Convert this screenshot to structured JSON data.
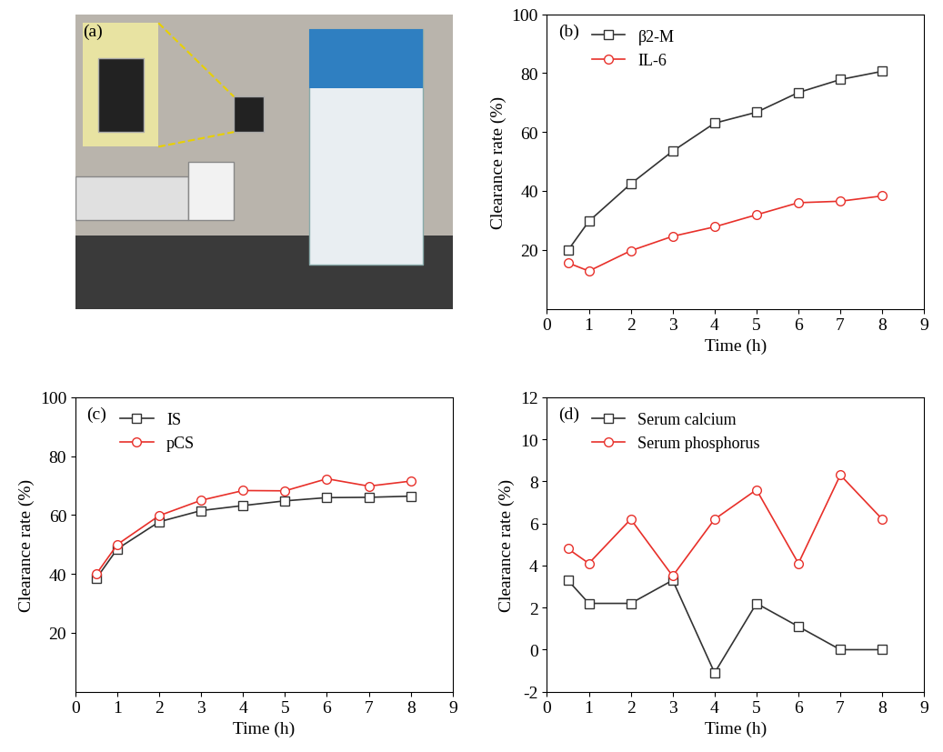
{
  "photo": {
    "label": "(a)"
  },
  "chart_data": [
    {
      "type": "line",
      "annotations": [
        "(b)"
      ],
      "x_label": "Time (h)",
      "y_label": "Clearance rate (%)",
      "x": [
        0.5,
        1,
        2,
        3,
        4,
        5,
        6,
        7,
        8
      ],
      "series": [
        {
          "name": "β2-M",
          "color": "#333333",
          "marker": "square",
          "values": [
            19.8,
            29.7,
            42.4,
            53.5,
            63.0,
            66.7,
            73.4,
            77.8,
            80.6
          ]
        },
        {
          "name": "IL-6",
          "color": "#e8302a",
          "marker": "circle",
          "values": [
            15.6,
            12.8,
            19.7,
            24.6,
            27.8,
            31.9,
            36.0,
            36.5,
            38.3
          ]
        }
      ],
      "xlim": [
        0,
        9
      ],
      "xticks": [
        0,
        1,
        2,
        3,
        4,
        5,
        6,
        7,
        8,
        9
      ],
      "ylim": [
        0,
        100
      ],
      "yticks": [
        20,
        40,
        60,
        80,
        100
      ],
      "legend": "upper left"
    },
    {
      "type": "line",
      "annotations": [
        "(c)"
      ],
      "x_label": "Time (h)",
      "y_label": "Clearance rate (%)",
      "x": [
        0.5,
        1,
        2,
        3,
        4,
        5,
        6,
        7,
        8
      ],
      "series": [
        {
          "name": "IS",
          "color": "#333333",
          "marker": "square",
          "values": [
            38.5,
            48.5,
            57.7,
            61.5,
            63.2,
            64.8,
            65.9,
            66.0,
            66.4
          ]
        },
        {
          "name": "pCS",
          "color": "#e8302a",
          "marker": "circle",
          "values": [
            40.0,
            50.0,
            59.8,
            65.0,
            68.3,
            68.2,
            72.3,
            69.8,
            71.5
          ]
        }
      ],
      "xlim": [
        0,
        9
      ],
      "xticks": [
        0,
        1,
        2,
        3,
        4,
        5,
        6,
        7,
        8,
        9
      ],
      "ylim": [
        0,
        100
      ],
      "yticks": [
        20,
        40,
        60,
        80,
        100
      ],
      "legend": "upper left"
    },
    {
      "type": "line",
      "annotations": [
        "(d)"
      ],
      "x_label": "Time (h)",
      "y_label": "Clearance rate (%)",
      "x": [
        0.5,
        1,
        2,
        3,
        4,
        5,
        6,
        7,
        8
      ],
      "series": [
        {
          "name": "Serum calcium",
          "color": "#333333",
          "marker": "square",
          "values": [
            3.3,
            2.2,
            2.2,
            3.3,
            -1.1,
            2.2,
            1.1,
            0,
            0
          ]
        },
        {
          "name": "Serum phosphorus",
          "color": "#e8302a",
          "marker": "circle",
          "values": [
            4.8,
            4.1,
            6.2,
            3.5,
            6.2,
            7.6,
            4.1,
            8.3,
            6.2
          ]
        }
      ],
      "xlim": [
        0,
        9
      ],
      "xticks": [
        0,
        1,
        2,
        3,
        4,
        5,
        6,
        7,
        8,
        9
      ],
      "ylim": [
        -2,
        12
      ],
      "yticks": [
        -2,
        0,
        2,
        4,
        6,
        8,
        10,
        12
      ],
      "legend": "upper left"
    }
  ]
}
